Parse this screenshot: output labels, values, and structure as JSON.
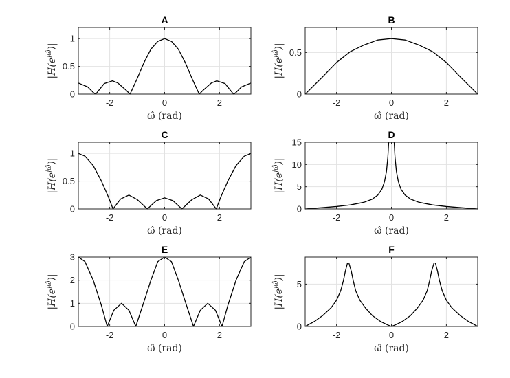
{
  "chart_data": [
    {
      "type": "line",
      "title": "A",
      "xlabel": "ω̂ (rad)",
      "ylabel": "|H(e^{jω̂})|",
      "xlim": [
        -3.1416,
        3.1416
      ],
      "ylim": [
        0,
        1.2
      ],
      "xticks": [
        -2,
        0,
        2
      ],
      "yticks": [
        0,
        0.5,
        1
      ],
      "xticklabels": [
        "-2",
        "0",
        "2"
      ],
      "yticklabels": [
        "0",
        "0.5",
        "1"
      ],
      "grid": true,
      "series": [
        {
          "x": [
            -3.1416,
            -2.8,
            -2.6,
            -2.51,
            -2.2,
            -1.9,
            -1.7,
            -1.4,
            -1.26,
            -1.0,
            -0.75,
            -0.5,
            -0.25,
            0,
            0.25,
            0.5,
            0.75,
            1.0,
            1.26,
            1.4,
            1.7,
            1.9,
            2.2,
            2.51,
            2.6,
            2.8,
            3.1416
          ],
          "y": [
            0.2,
            0.13,
            0.03,
            0.0,
            0.19,
            0.24,
            0.2,
            0.07,
            0.0,
            0.28,
            0.57,
            0.81,
            0.95,
            1.0,
            0.95,
            0.81,
            0.57,
            0.28,
            0.0,
            0.07,
            0.2,
            0.24,
            0.19,
            0.0,
            0.03,
            0.13,
            0.2
          ]
        }
      ]
    },
    {
      "type": "line",
      "title": "B",
      "xlabel": "ω̂ (rad)",
      "ylabel": "|H(e^{jω̂})|",
      "xlim": [
        -3.1416,
        3.1416
      ],
      "ylim": [
        0,
        0.8
      ],
      "xticks": [
        -2,
        0,
        2
      ],
      "yticks": [
        0,
        0.5
      ],
      "xticklabels": [
        "-2",
        "0",
        "2"
      ],
      "yticklabels": [
        "0",
        "0.5"
      ],
      "grid": true,
      "series": [
        {
          "x": [
            -3.1416,
            -2.5,
            -2.0,
            -1.5,
            -1.0,
            -0.5,
            0,
            0.5,
            1.0,
            1.5,
            2.0,
            2.5,
            3.1416
          ],
          "y": [
            0.0,
            0.21,
            0.38,
            0.51,
            0.59,
            0.65,
            0.667,
            0.65,
            0.59,
            0.51,
            0.38,
            0.21,
            0.0
          ]
        }
      ]
    },
    {
      "type": "line",
      "title": "C",
      "xlabel": "ω̂ (rad)",
      "ylabel": "|H(e^{jω̂})|",
      "xlim": [
        -3.1416,
        3.1416
      ],
      "ylim": [
        0,
        1.2
      ],
      "xticks": [
        -2,
        0,
        2
      ],
      "yticks": [
        0,
        0.5,
        1
      ],
      "xticklabels": [
        "-2",
        "0",
        "2"
      ],
      "yticklabels": [
        "0",
        "0.5",
        "1"
      ],
      "grid": true,
      "series": [
        {
          "x": [
            -3.1416,
            -2.9,
            -2.6,
            -2.3,
            -2.05,
            -1.88,
            -1.6,
            -1.3,
            -1.0,
            -0.63,
            -0.3,
            0,
            0.3,
            0.63,
            1.0,
            1.3,
            1.6,
            1.88,
            2.05,
            2.3,
            2.6,
            2.9,
            3.1416
          ],
          "y": [
            1.0,
            0.95,
            0.78,
            0.5,
            0.22,
            0.0,
            0.18,
            0.25,
            0.17,
            0.0,
            0.15,
            0.2,
            0.15,
            0.0,
            0.17,
            0.25,
            0.18,
            0.0,
            0.22,
            0.5,
            0.78,
            0.95,
            1.0
          ]
        }
      ]
    },
    {
      "type": "line",
      "title": "D",
      "xlabel": "ω̂ (rad)",
      "ylabel": "|H(e^{jω̂})|",
      "xlim": [
        -3.1416,
        3.1416
      ],
      "ylim": [
        0,
        15
      ],
      "xticks": [
        -2,
        0,
        2
      ],
      "yticks": [
        0,
        5,
        10,
        15
      ],
      "xticklabels": [
        "-2",
        "0",
        "2"
      ],
      "yticklabels": [
        "0",
        "5",
        "10",
        "15"
      ],
      "grid": true,
      "series": [
        {
          "x": [
            -3.1416,
            -2.5,
            -2.0,
            -1.5,
            -1.0,
            -0.7,
            -0.5,
            -0.35,
            -0.25,
            -0.18,
            -0.13,
            -0.1,
            0.1,
            0.13,
            0.18,
            0.25,
            0.35,
            0.5,
            0.7,
            1.0,
            1.5,
            2.0,
            2.5,
            3.1416
          ],
          "y": [
            0.0,
            0.3,
            0.55,
            0.9,
            1.5,
            2.2,
            3.1,
            4.4,
            6.2,
            8.5,
            11.7,
            15,
            15,
            11.7,
            8.5,
            6.2,
            4.4,
            3.1,
            2.2,
            1.5,
            0.9,
            0.55,
            0.3,
            0.0
          ]
        }
      ]
    },
    {
      "type": "line",
      "title": "E",
      "xlabel": "ω̂ (rad)",
      "ylabel": "|H(e^{jω̂})|",
      "xlim": [
        -3.1416,
        3.1416
      ],
      "ylim": [
        0,
        3
      ],
      "xticks": [
        -2,
        0,
        2
      ],
      "yticks": [
        0,
        1,
        2,
        3
      ],
      "xticklabels": [
        "-2",
        "0",
        "2"
      ],
      "yticklabels": [
        "0",
        "1",
        "2",
        "3"
      ],
      "grid": true,
      "series": [
        {
          "x": [
            -3.1416,
            -2.9,
            -2.6,
            -2.3,
            -2.09,
            -1.85,
            -1.57,
            -1.3,
            -1.05,
            -0.8,
            -0.5,
            -0.25,
            0,
            0.25,
            0.5,
            0.8,
            1.05,
            1.3,
            1.57,
            1.85,
            2.09,
            2.3,
            2.6,
            2.9,
            3.1416
          ],
          "y": [
            3.0,
            2.8,
            2.0,
            0.9,
            0.0,
            0.7,
            1.0,
            0.7,
            0.0,
            0.9,
            2.0,
            2.8,
            3.0,
            2.8,
            2.0,
            0.9,
            0.0,
            0.7,
            1.0,
            0.7,
            0.0,
            0.9,
            2.0,
            2.8,
            3.0
          ]
        }
      ]
    },
    {
      "type": "line",
      "title": "F",
      "xlabel": "ω̂ (rad)",
      "ylabel": "|H(e^{jω̂})|",
      "xlim": [
        -3.1416,
        3.1416
      ],
      "ylim": [
        0,
        8.2
      ],
      "xticks": [
        -2,
        0,
        2
      ],
      "yticks": [
        0,
        5
      ],
      "xticklabels": [
        "-2",
        "0",
        "2"
      ],
      "yticklabels": [
        "0",
        "5"
      ],
      "grid": true,
      "series": [
        {
          "x": [
            -3.1416,
            -2.8,
            -2.5,
            -2.2,
            -2.0,
            -1.85,
            -1.75,
            -1.68,
            -1.6,
            -1.55,
            -1.46,
            -1.39,
            -1.3,
            -1.15,
            -0.95,
            -0.7,
            -0.4,
            -0.15,
            0,
            0.15,
            0.4,
            0.7,
            0.95,
            1.15,
            1.3,
            1.39,
            1.46,
            1.55,
            1.6,
            1.68,
            1.75,
            1.85,
            2.0,
            2.2,
            2.5,
            2.8,
            3.1416
          ],
          "y": [
            0.0,
            0.6,
            1.3,
            2.2,
            3.1,
            4.2,
            5.4,
            6.5,
            7.5,
            7.5,
            6.5,
            5.4,
            4.2,
            3.1,
            2.2,
            1.3,
            0.6,
            0.2,
            0.0,
            0.2,
            0.6,
            1.3,
            2.2,
            3.1,
            4.2,
            5.4,
            6.5,
            7.5,
            7.5,
            6.5,
            5.4,
            4.2,
            3.1,
            2.2,
            1.3,
            0.6,
            0.0
          ]
        }
      ]
    }
  ]
}
